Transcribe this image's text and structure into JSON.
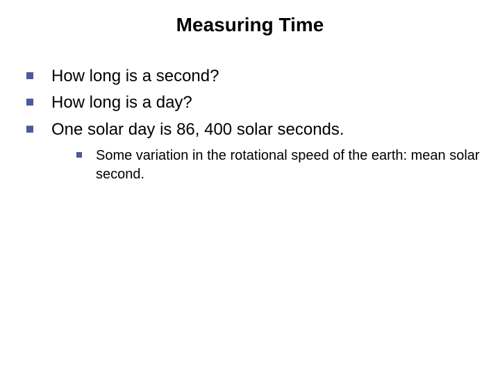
{
  "slide": {
    "title": "Measuring Time",
    "title_fontsize": 28,
    "title_color": "#000000",
    "bullets": [
      {
        "text": "How long is a second?"
      },
      {
        "text": "How long is a day?"
      },
      {
        "text": "One solar day is 86, 400 solar seconds."
      }
    ],
    "bullet_fontsize": 24,
    "bullet_color": "#000000",
    "bullet_marker_color": "#4a5a9c",
    "sub_bullets": [
      {
        "text": "Some variation in the rotational speed of the earth: mean solar second."
      }
    ],
    "sub_bullet_fontsize": 20,
    "sub_bullet_color": "#000000",
    "background_color": "#ffffff"
  }
}
